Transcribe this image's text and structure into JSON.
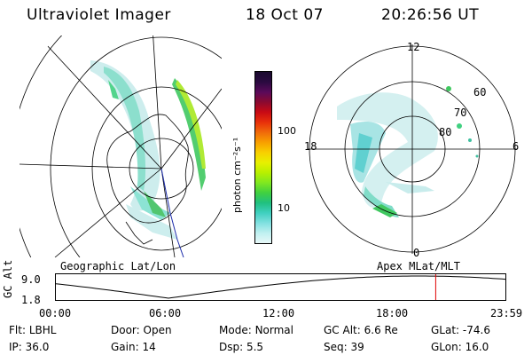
{
  "header": {
    "instrument": "Ultraviolet Imager",
    "date": "18 Oct 07",
    "time": "20:26:56 UT"
  },
  "colorbar": {
    "unit_label": "photon cm⁻²s⁻¹",
    "ticks": [
      "100",
      "10"
    ],
    "colors": [
      "#1a0a2e",
      "#2a0a40",
      "#5a0a5a",
      "#8a0a30",
      "#c80a14",
      "#e8300a",
      "#f06a0a",
      "#f8a000",
      "#f8d000",
      "#e8f000",
      "#b8f000",
      "#80e820",
      "#40d040",
      "#20c080",
      "#40d0c0",
      "#80e0e0",
      "#c0f0f0",
      "#e8f8f8"
    ]
  },
  "polar_grid": {
    "lat_labels": [
      "60",
      "70",
      "80"
    ],
    "mlt_labels": {
      "top": "12",
      "left": "18",
      "right": "6",
      "bottom": "0"
    }
  },
  "map_labels": {
    "left": "Geographic Lat/Lon",
    "right": "Apex MLat/MLT"
  },
  "altitude_plot": {
    "axis_label": "GC Alt",
    "ytick_top": "9.0",
    "ytick_bottom": "1.8",
    "x_ticks": [
      "00:00",
      "06:00",
      "12:00",
      "18:00",
      "23:59"
    ],
    "current_marker_color": "#e00000",
    "current_time_fraction": 0.8433
  },
  "info": {
    "row1": [
      {
        "label": "Flt:",
        "value": "LBHL"
      },
      {
        "label": "Door:",
        "value": "Open"
      },
      {
        "label": "Mode:",
        "value": "Normal"
      },
      {
        "label": "GC Alt:",
        "value": "6.6 Re"
      },
      {
        "label": "GLat:",
        "value": "-74.6"
      }
    ],
    "row2": [
      {
        "label": "IP:",
        "value": "36.0"
      },
      {
        "label": "Gain:",
        "value": "14"
      },
      {
        "label": "Dsp:",
        "value": "5.5"
      },
      {
        "label": "Seq:",
        "value": "39"
      },
      {
        "label": "GLon:",
        "value": "16.0"
      }
    ]
  }
}
